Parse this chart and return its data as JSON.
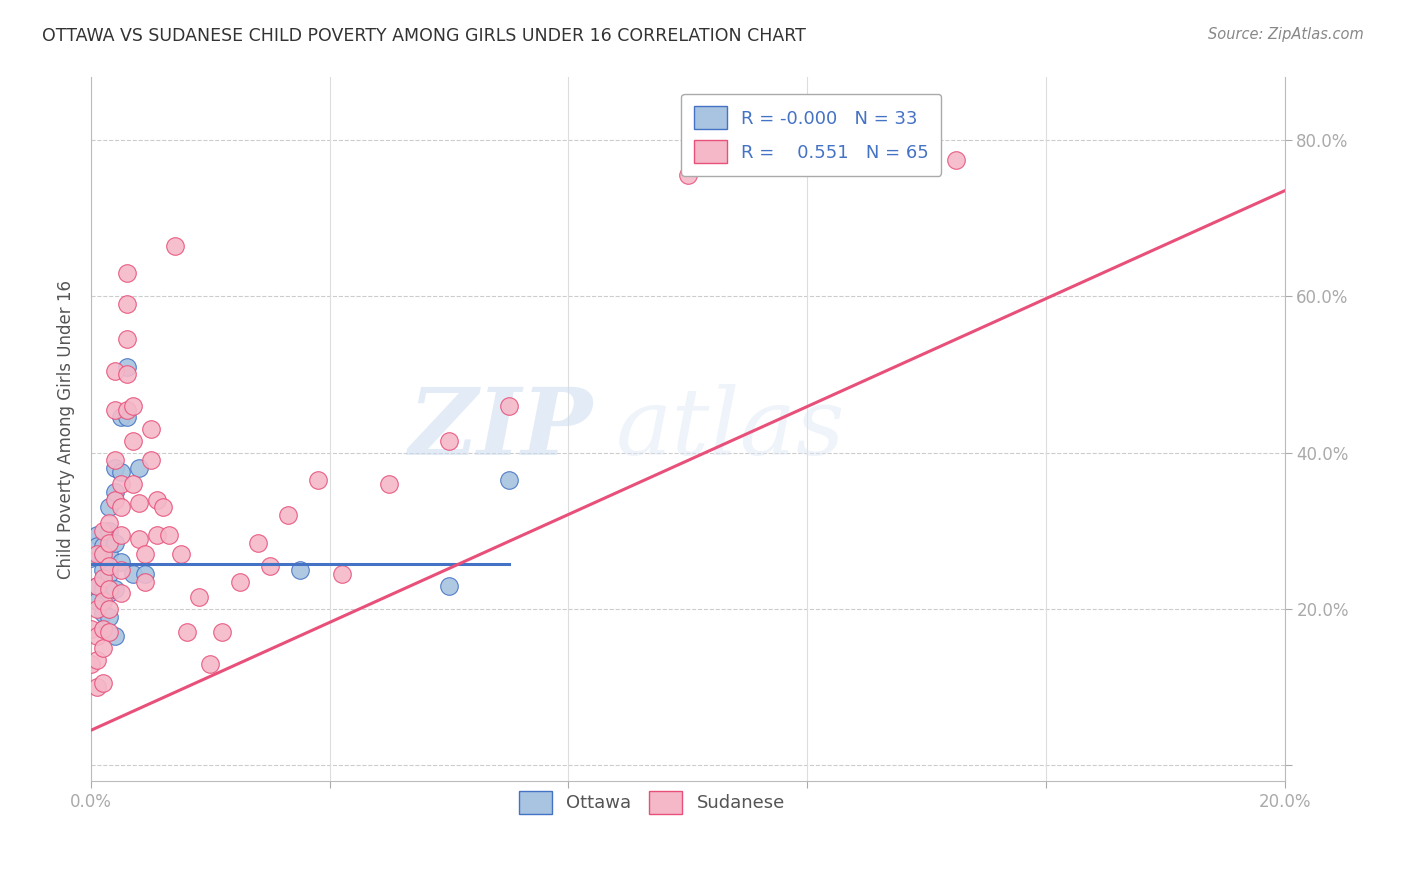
{
  "title": "OTTAWA VS SUDANESE CHILD POVERTY AMONG GIRLS UNDER 16 CORRELATION CHART",
  "source": "Source: ZipAtlas.com",
  "ylabel": "Child Poverty Among Girls Under 16",
  "xlim": [
    0.0,
    0.2
  ],
  "ylim": [
    -0.02,
    0.88
  ],
  "yticks": [
    0.0,
    0.2,
    0.4,
    0.6,
    0.8
  ],
  "xticks": [
    0.0,
    0.04,
    0.08,
    0.12,
    0.16,
    0.2
  ],
  "xtick_labels": [
    "0.0%",
    "",
    "",
    "",
    "",
    "20.0%"
  ],
  "ytick_labels": [
    "",
    "20.0%",
    "40.0%",
    "60.0%",
    "80.0%"
  ],
  "ottawa_R": -0.0,
  "ottawa_N": 33,
  "sudanese_R": 0.551,
  "sudanese_N": 65,
  "ottawa_color": "#a8c4e0",
  "sudanese_color": "#f4b8c8",
  "ottawa_line_color": "#4472c4",
  "sudanese_line_color": "#e8507a",
  "grid_color": "#cccccc",
  "watermark_zip": "ZIP",
  "watermark_atlas": "atlas",
  "legend_border_color": "#aaaaaa",
  "ottawa_x": [
    0.0,
    0.001,
    0.001,
    0.001,
    0.001,
    0.002,
    0.002,
    0.002,
    0.002,
    0.002,
    0.002,
    0.003,
    0.003,
    0.003,
    0.003,
    0.003,
    0.003,
    0.004,
    0.004,
    0.004,
    0.004,
    0.004,
    0.005,
    0.005,
    0.005,
    0.006,
    0.006,
    0.007,
    0.008,
    0.009,
    0.035,
    0.06,
    0.07
  ],
  "ottawa_y": [
    0.265,
    0.23,
    0.21,
    0.295,
    0.28,
    0.265,
    0.25,
    0.225,
    0.195,
    0.175,
    0.28,
    0.33,
    0.3,
    0.27,
    0.245,
    0.22,
    0.19,
    0.38,
    0.35,
    0.285,
    0.225,
    0.165,
    0.445,
    0.375,
    0.26,
    0.51,
    0.445,
    0.245,
    0.38,
    0.245,
    0.25,
    0.23,
    0.365
  ],
  "sudanese_x": [
    0.0,
    0.0,
    0.001,
    0.001,
    0.001,
    0.001,
    0.001,
    0.001,
    0.002,
    0.002,
    0.002,
    0.002,
    0.002,
    0.002,
    0.002,
    0.003,
    0.003,
    0.003,
    0.003,
    0.003,
    0.003,
    0.004,
    0.004,
    0.004,
    0.004,
    0.005,
    0.005,
    0.005,
    0.005,
    0.005,
    0.006,
    0.006,
    0.006,
    0.006,
    0.006,
    0.007,
    0.007,
    0.007,
    0.008,
    0.008,
    0.009,
    0.009,
    0.01,
    0.01,
    0.011,
    0.011,
    0.012,
    0.013,
    0.014,
    0.015,
    0.016,
    0.018,
    0.02,
    0.022,
    0.025,
    0.028,
    0.03,
    0.033,
    0.038,
    0.042,
    0.05,
    0.06,
    0.07,
    0.1,
    0.145
  ],
  "sudanese_y": [
    0.175,
    0.13,
    0.27,
    0.23,
    0.2,
    0.165,
    0.135,
    0.1,
    0.3,
    0.27,
    0.24,
    0.21,
    0.175,
    0.15,
    0.105,
    0.31,
    0.285,
    0.255,
    0.225,
    0.2,
    0.17,
    0.505,
    0.455,
    0.39,
    0.34,
    0.36,
    0.33,
    0.295,
    0.25,
    0.22,
    0.63,
    0.59,
    0.545,
    0.5,
    0.455,
    0.46,
    0.415,
    0.36,
    0.335,
    0.29,
    0.27,
    0.235,
    0.43,
    0.39,
    0.34,
    0.295,
    0.33,
    0.295,
    0.665,
    0.27,
    0.17,
    0.215,
    0.13,
    0.17,
    0.235,
    0.285,
    0.255,
    0.32,
    0.365,
    0.245,
    0.36,
    0.415,
    0.46,
    0.755,
    0.775
  ],
  "ottawa_line_x": [
    0.0,
    0.07
  ],
  "ottawa_line_y": [
    0.258,
    0.258
  ],
  "sudanese_line_x": [
    0.0,
    0.2
  ],
  "sudanese_line_y": [
    0.045,
    0.735
  ]
}
